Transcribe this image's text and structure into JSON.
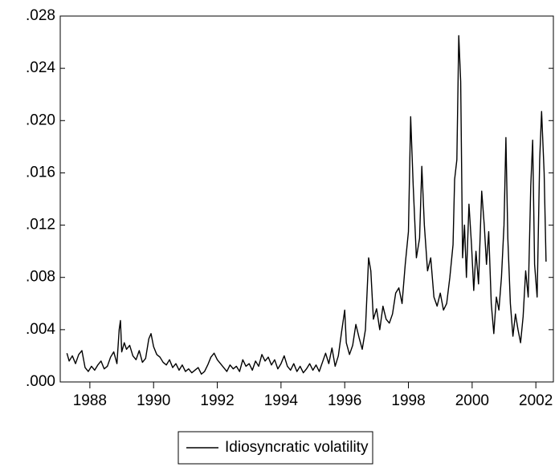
{
  "chart_data": {
    "type": "line",
    "x": [
      1987.28,
      1987.35,
      1987.45,
      1987.55,
      1987.65,
      1987.75,
      1987.85,
      1987.95,
      1988.05,
      1988.15,
      1988.25,
      1988.35,
      1988.45,
      1988.55,
      1988.65,
      1988.75,
      1988.85,
      1988.92,
      1988.96,
      1989.0,
      1989.08,
      1989.15,
      1989.25,
      1989.35,
      1989.45,
      1989.55,
      1989.65,
      1989.75,
      1989.85,
      1989.92,
      1990.0,
      1990.1,
      1990.2,
      1990.3,
      1990.4,
      1990.5,
      1990.6,
      1990.7,
      1990.8,
      1990.9,
      1991.0,
      1991.1,
      1991.2,
      1991.3,
      1991.4,
      1991.5,
      1991.6,
      1991.7,
      1991.8,
      1991.9,
      1992.0,
      1992.1,
      1992.2,
      1992.3,
      1992.4,
      1992.5,
      1992.6,
      1992.7,
      1992.8,
      1992.9,
      1993.0,
      1993.1,
      1993.2,
      1993.3,
      1993.4,
      1993.5,
      1993.6,
      1993.7,
      1993.8,
      1993.9,
      1994.0,
      1994.1,
      1994.2,
      1994.3,
      1994.4,
      1994.5,
      1994.6,
      1994.7,
      1994.8,
      1994.9,
      1995.0,
      1995.1,
      1995.2,
      1995.3,
      1995.4,
      1995.5,
      1995.6,
      1995.7,
      1995.8,
      1995.9,
      1996.0,
      1996.05,
      1996.15,
      1996.25,
      1996.35,
      1996.45,
      1996.55,
      1996.65,
      1996.75,
      1996.82,
      1996.9,
      1997.0,
      1997.1,
      1997.2,
      1997.3,
      1997.4,
      1997.5,
      1997.6,
      1997.7,
      1997.8,
      1997.9,
      1998.0,
      1998.07,
      1998.15,
      1998.25,
      1998.35,
      1998.42,
      1998.5,
      1998.6,
      1998.7,
      1998.8,
      1998.9,
      1999.0,
      1999.1,
      1999.2,
      1999.3,
      1999.4,
      1999.45,
      1999.52,
      1999.58,
      1999.64,
      1999.7,
      1999.76,
      1999.82,
      1999.9,
      1999.98,
      2000.05,
      2000.12,
      2000.2,
      2000.3,
      2000.38,
      2000.45,
      2000.52,
      2000.6,
      2000.68,
      2000.76,
      2000.84,
      2000.92,
      2001.0,
      2001.06,
      2001.12,
      2001.2,
      2001.28,
      2001.36,
      2001.44,
      2001.52,
      2001.6,
      2001.68,
      2001.76,
      2001.84,
      2001.9,
      2001.96,
      2002.04,
      2002.12,
      2002.18,
      2002.26,
      2002.32
    ],
    "series": [
      {
        "name": "Idiosyncratic volatility",
        "color": "#000000",
        "values": [
          0.0022,
          0.0016,
          0.002,
          0.0014,
          0.0021,
          0.0024,
          0.0011,
          0.0008,
          0.0012,
          0.0009,
          0.0013,
          0.0016,
          0.001,
          0.0012,
          0.0019,
          0.0023,
          0.0014,
          0.004,
          0.0047,
          0.0023,
          0.003,
          0.0025,
          0.0028,
          0.002,
          0.0017,
          0.0024,
          0.0015,
          0.0018,
          0.0033,
          0.0037,
          0.0027,
          0.0021,
          0.0019,
          0.0015,
          0.0013,
          0.0017,
          0.0011,
          0.0014,
          0.0009,
          0.0013,
          0.0008,
          0.001,
          0.0007,
          0.0009,
          0.0011,
          0.0006,
          0.0008,
          0.0013,
          0.0019,
          0.0022,
          0.0017,
          0.0014,
          0.0011,
          0.0008,
          0.0013,
          0.001,
          0.0012,
          0.0008,
          0.0017,
          0.0012,
          0.0014,
          0.0009,
          0.0016,
          0.0012,
          0.0021,
          0.0016,
          0.0019,
          0.0013,
          0.0017,
          0.001,
          0.0014,
          0.002,
          0.0012,
          0.0009,
          0.0014,
          0.0008,
          0.0012,
          0.0007,
          0.001,
          0.0014,
          0.0009,
          0.0013,
          0.0008,
          0.0015,
          0.0022,
          0.0014,
          0.0026,
          0.0012,
          0.002,
          0.0038,
          0.0055,
          0.003,
          0.0021,
          0.0028,
          0.0044,
          0.0034,
          0.0025,
          0.004,
          0.0095,
          0.0085,
          0.0048,
          0.0056,
          0.004,
          0.0058,
          0.0048,
          0.0045,
          0.0052,
          0.0068,
          0.0072,
          0.006,
          0.009,
          0.0115,
          0.0203,
          0.015,
          0.0095,
          0.011,
          0.0165,
          0.012,
          0.0085,
          0.0095,
          0.0065,
          0.0058,
          0.0068,
          0.0055,
          0.006,
          0.008,
          0.0105,
          0.0155,
          0.017,
          0.0265,
          0.023,
          0.0095,
          0.012,
          0.008,
          0.0136,
          0.0105,
          0.007,
          0.01,
          0.0075,
          0.0146,
          0.012,
          0.009,
          0.0115,
          0.006,
          0.0037,
          0.0065,
          0.0055,
          0.008,
          0.012,
          0.0187,
          0.011,
          0.006,
          0.0035,
          0.0052,
          0.004,
          0.003,
          0.005,
          0.0085,
          0.0065,
          0.015,
          0.0185,
          0.009,
          0.0065,
          0.017,
          0.0207,
          0.016,
          0.0092
        ]
      }
    ],
    "xlim": [
      1987.07,
      2002.55
    ],
    "xticks": [
      1988,
      1990,
      1992,
      1994,
      1996,
      1998,
      2000,
      2002
    ],
    "ylim": [
      0,
      0.028
    ],
    "yticks": [
      {
        "value": 0,
        "label": ".000"
      },
      {
        "value": 0.004,
        "label": ".004"
      },
      {
        "value": 0.008,
        "label": ".008"
      },
      {
        "value": 0.012,
        "label": ".012"
      },
      {
        "value": 0.016,
        "label": ".016"
      },
      {
        "value": 0.02,
        "label": ".020"
      },
      {
        "value": 0.024,
        "label": ".024"
      },
      {
        "value": 0.028,
        "label": ".028"
      }
    ],
    "legend": "bottom"
  }
}
